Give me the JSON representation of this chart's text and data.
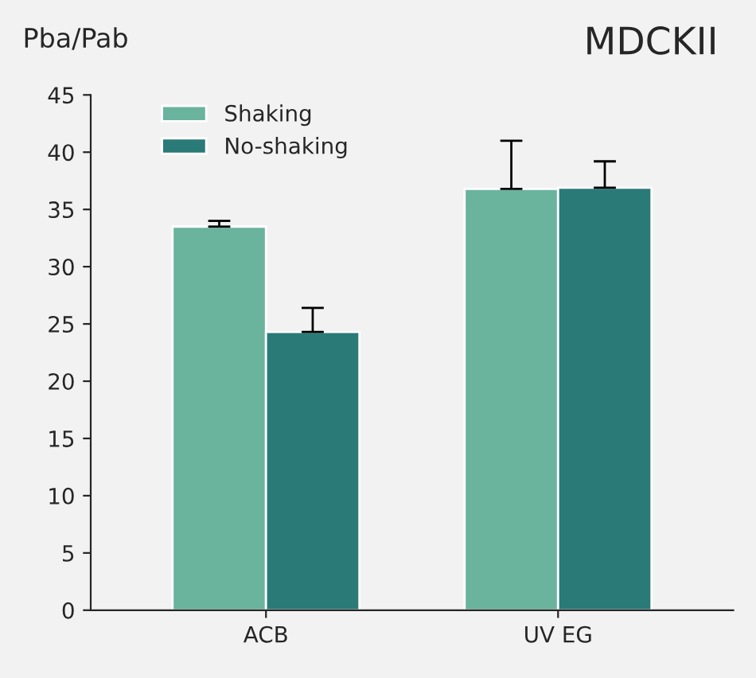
{
  "chart_data": {
    "type": "bar",
    "title": "MDCKII",
    "ylabel": "Pba/Pab",
    "categories": [
      "ACB",
      "UV EG"
    ],
    "series": [
      {
        "name": "Shaking",
        "color": "#6ab39c",
        "values": [
          33.5,
          36.8
        ],
        "errors": [
          [
            33.5,
            34.0
          ],
          [
            36.8,
            41.0
          ]
        ]
      },
      {
        "name": "No-shaking",
        "color": "#2a7a78",
        "values": [
          24.3,
          36.9
        ],
        "errors": [
          [
            24.3,
            26.4
          ],
          [
            36.9,
            39.2
          ]
        ]
      }
    ],
    "ylim": [
      0,
      45
    ],
    "yticks": [
      0,
      5,
      10,
      15,
      20,
      25,
      30,
      35,
      40,
      45
    ],
    "grid": false,
    "legend": "top left"
  }
}
